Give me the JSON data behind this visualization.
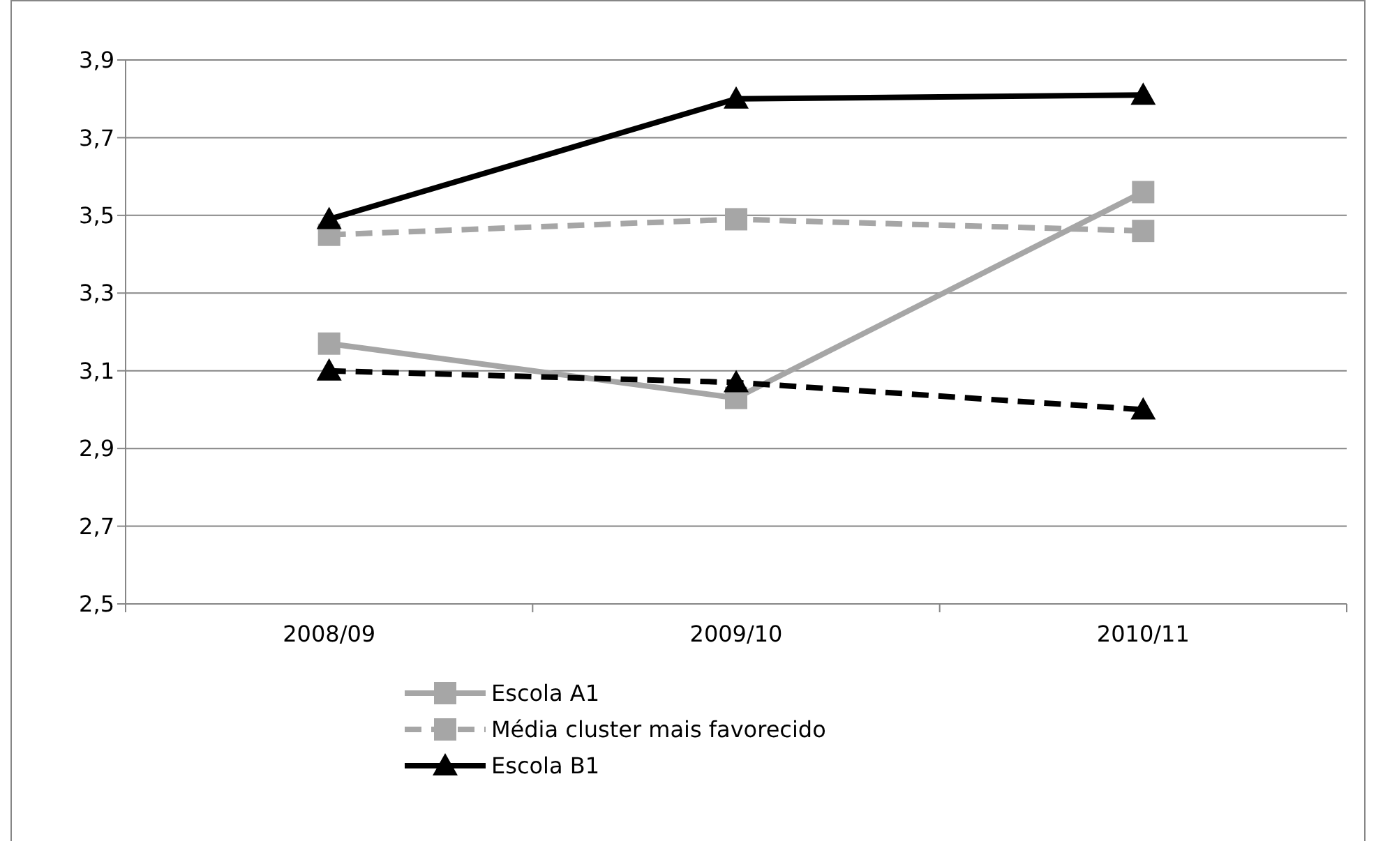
{
  "chart_data": {
    "type": "line",
    "categories": [
      "2008/09",
      "2009/10",
      "2010/11"
    ],
    "series": [
      {
        "name": "Escola A1",
        "color": "#a6a6a6",
        "values": [
          3.17,
          3.03,
          3.56
        ],
        "marker": "square",
        "line_style": "solid"
      },
      {
        "name": "Média cluster mais favorecido",
        "color": "#a6a6a6",
        "values": [
          3.45,
          3.49,
          3.46
        ],
        "marker": "square",
        "line_style": "dashed"
      },
      {
        "name": "Escola B1",
        "color": "#000000",
        "values": [
          3.49,
          3.8,
          3.81
        ],
        "marker": "triangle",
        "line_style": "solid"
      },
      {
        "color": "#000000",
        "values": [
          3.1,
          3.07,
          3.0
        ],
        "marker": "triangle",
        "line_style": "dashed"
      }
    ],
    "ylim": [
      2.5,
      3.9
    ],
    "yticks": [
      {
        "value": 2.5,
        "label": "2,5"
      },
      {
        "value": 2.7,
        "label": "2,7"
      },
      {
        "value": 2.9,
        "label": "2,9"
      },
      {
        "value": 3.1,
        "label": "3,1"
      },
      {
        "value": 3.3,
        "label": "3,3"
      },
      {
        "value": 3.5,
        "label": "3,5"
      },
      {
        "value": 3.7,
        "label": "3,7"
      },
      {
        "value": 3.9,
        "label": "3,9"
      }
    ],
    "grid": "y",
    "legend": "bottom"
  }
}
